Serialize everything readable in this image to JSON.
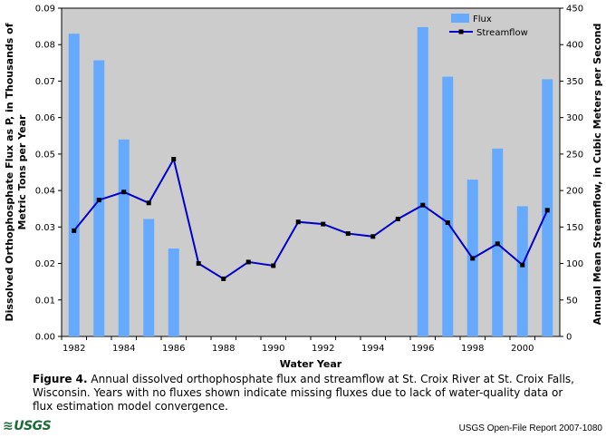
{
  "chart_data": {
    "type": "bar+line",
    "categories": [
      "1982",
      "1983",
      "1984",
      "1985",
      "1986",
      "1987",
      "1988",
      "1989",
      "1990",
      "1991",
      "1992",
      "1993",
      "1994",
      "1995",
      "1996",
      "1997",
      "1998",
      "1999",
      "2000",
      "2001"
    ],
    "x_tick_labels": [
      "1982",
      "1984",
      "1986",
      "1988",
      "1990",
      "1992",
      "1994",
      "1996",
      "1998",
      "2000"
    ],
    "series": [
      {
        "name": "Flux",
        "kind": "bar",
        "axis": "left",
        "color": "#66aaff",
        "values": [
          0.083,
          0.0757,
          0.054,
          0.0322,
          0.0241,
          null,
          null,
          null,
          null,
          null,
          null,
          null,
          null,
          null,
          0.0848,
          0.0712,
          0.043,
          0.0515,
          0.0357,
          0.0705
        ]
      },
      {
        "name": "Streamflow",
        "kind": "line",
        "axis": "right",
        "color": "#0000cc",
        "marker_color": "#000000",
        "values": [
          145,
          187,
          198,
          183,
          243,
          100,
          79,
          102,
          97,
          157,
          154,
          141,
          137,
          161,
          180,
          156,
          107,
          127,
          98,
          173
        ]
      }
    ],
    "y_left": {
      "label_line1": "Dissolved Orthophosphate Flux as P, in Thousands of",
      "label_line2": "Metric Tons per Year",
      "range": [
        0,
        0.09
      ],
      "ticks": [
        "0.00",
        "0.01",
        "0.02",
        "0.03",
        "0.04",
        "0.05",
        "0.06",
        "0.07",
        "0.08",
        "0.09"
      ]
    },
    "y_right": {
      "label": "Annual Mean Streamflow, in Cubic Meters per Second",
      "range": [
        0,
        450
      ],
      "ticks": [
        "0",
        "50",
        "100",
        "150",
        "200",
        "250",
        "300",
        "350",
        "400",
        "450"
      ]
    },
    "xlabel": "Water Year",
    "legend": "top-right",
    "plot_background": "#cccccc",
    "grid": false
  },
  "caption": {
    "figure_label": "Figure 4.",
    "text": " Annual dissolved orthophosphate flux and streamflow at St. Croix River at St. Croix Falls, Wisconsin. Years with no fluxes shown indicate missing fluxes due to lack of water-quality data or flux estimation model convergence."
  },
  "footer": {
    "logo_text": "USGS",
    "logo_color": "#1a6b35",
    "report": "USGS Open-File Report 2007-1080"
  }
}
